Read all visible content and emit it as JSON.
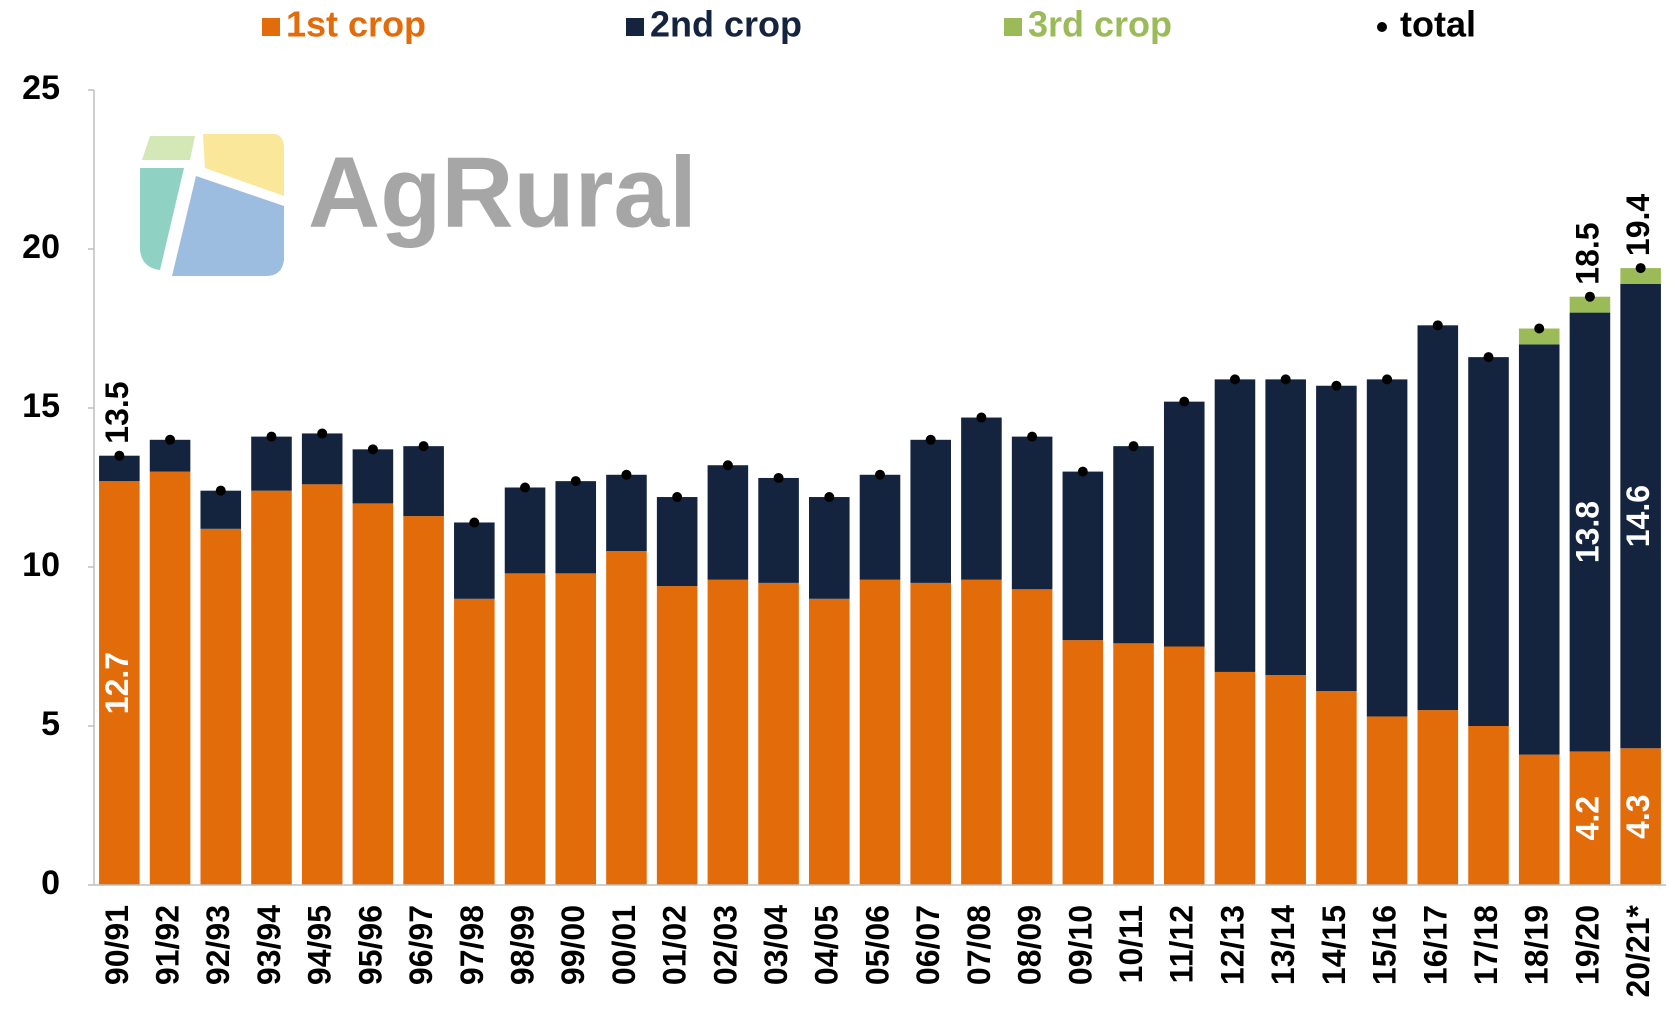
{
  "logo": "AgRural",
  "chart_data": {
    "type": "bar",
    "categories": [
      "90/91",
      "91/92",
      "92/93",
      "93/94",
      "94/95",
      "95/96",
      "96/97",
      "97/98",
      "98/99",
      "99/00",
      "00/01",
      "01/02",
      "02/03",
      "03/04",
      "04/05",
      "05/06",
      "06/07",
      "07/08",
      "08/09",
      "09/10",
      "10/11",
      "11/12",
      "12/13",
      "13/14",
      "14/15",
      "15/16",
      "16/17",
      "17/18",
      "18/19",
      "19/20",
      "20/21*"
    ],
    "series": [
      {
        "name": "1st crop",
        "color": "#e36c0a",
        "values": [
          12.7,
          13.0,
          11.2,
          12.4,
          12.6,
          12.0,
          11.6,
          9.0,
          9.8,
          9.8,
          10.5,
          9.4,
          9.6,
          9.5,
          9.0,
          9.6,
          9.5,
          9.6,
          9.3,
          7.7,
          7.6,
          7.5,
          6.7,
          6.6,
          6.1,
          5.3,
          5.5,
          5.0,
          4.1,
          4.2,
          4.3
        ],
        "value_labels": [
          "12.7",
          null,
          null,
          null,
          null,
          null,
          null,
          null,
          null,
          null,
          null,
          null,
          null,
          null,
          null,
          null,
          null,
          null,
          null,
          null,
          null,
          null,
          null,
          null,
          null,
          null,
          null,
          null,
          null,
          "4.2",
          "4.3"
        ]
      },
      {
        "name": "2nd crop",
        "color": "#14243f",
        "values": [
          0.8,
          1.0,
          1.2,
          1.7,
          1.6,
          1.7,
          2.2,
          2.4,
          2.7,
          2.9,
          2.4,
          2.8,
          3.6,
          3.3,
          3.2,
          3.3,
          4.5,
          5.1,
          4.8,
          5.3,
          6.2,
          7.7,
          9.2,
          9.3,
          9.6,
          10.6,
          12.1,
          11.6,
          12.9,
          13.8,
          14.6
        ],
        "value_labels": [
          null,
          null,
          null,
          null,
          null,
          null,
          null,
          null,
          null,
          null,
          null,
          null,
          null,
          null,
          null,
          null,
          null,
          null,
          null,
          null,
          null,
          null,
          null,
          null,
          null,
          null,
          null,
          null,
          null,
          "13.8",
          "14.6"
        ]
      },
      {
        "name": "3rd crop",
        "color": "#9bbb59",
        "values": [
          null,
          null,
          null,
          null,
          null,
          null,
          null,
          null,
          null,
          null,
          null,
          null,
          null,
          null,
          null,
          null,
          null,
          null,
          null,
          null,
          null,
          null,
          null,
          null,
          null,
          null,
          null,
          null,
          0.5,
          0.5,
          0.5
        ]
      },
      {
        "name": "total",
        "color": "#000000",
        "marker": "dot",
        "values": [
          13.5,
          14.0,
          12.4,
          14.1,
          14.2,
          13.7,
          13.8,
          11.4,
          12.5,
          12.7,
          12.9,
          12.2,
          13.2,
          12.8,
          12.2,
          12.9,
          14.0,
          14.7,
          14.1,
          13.0,
          13.8,
          15.2,
          15.9,
          15.9,
          15.7,
          15.9,
          17.6,
          16.6,
          17.5,
          18.5,
          19.4
        ],
        "value_labels": [
          "13.5",
          null,
          null,
          null,
          null,
          null,
          null,
          null,
          null,
          null,
          null,
          null,
          null,
          null,
          null,
          null,
          null,
          null,
          null,
          null,
          null,
          null,
          null,
          null,
          null,
          null,
          null,
          null,
          null,
          "18.5",
          "19.4"
        ]
      }
    ],
    "ylim": [
      0,
      25
    ],
    "yticks": [
      0,
      5,
      10,
      15,
      20,
      25
    ],
    "grid": false
  }
}
